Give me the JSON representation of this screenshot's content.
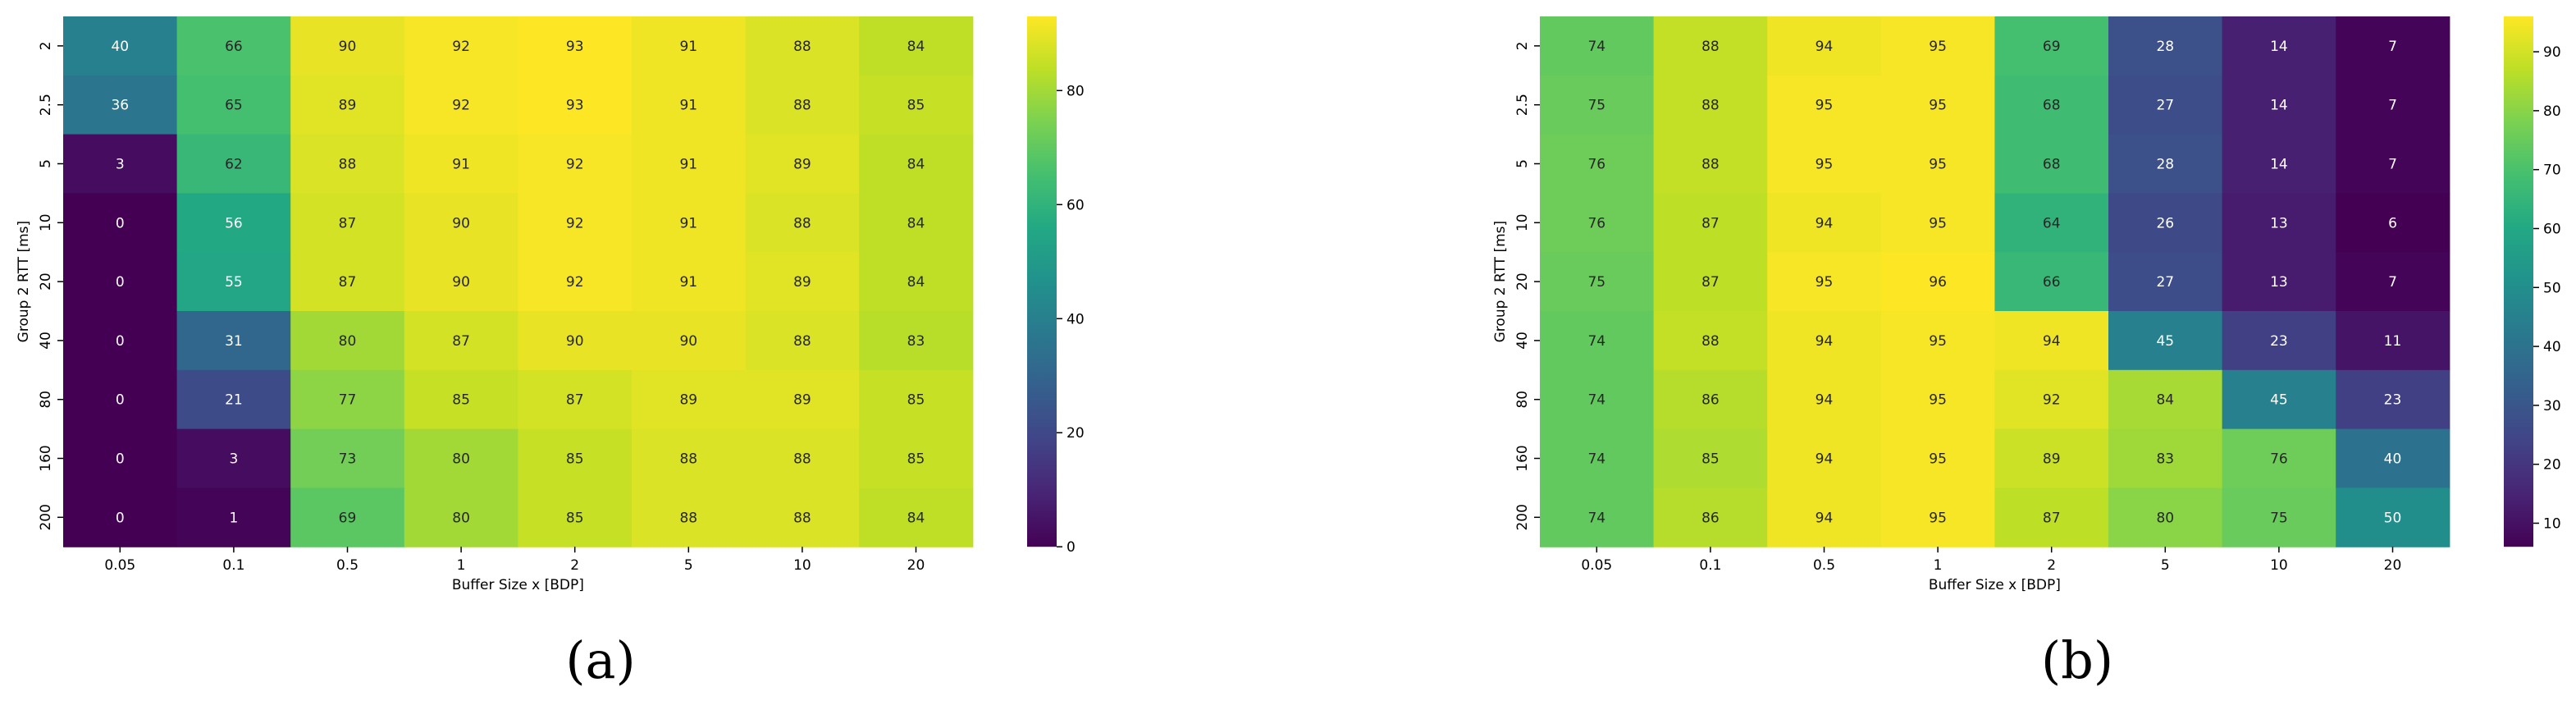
{
  "chart_data": [
    {
      "type": "heatmap",
      "xlabel": "Buffer Size x [BDP]",
      "ylabel": "Group 2 RTT [ms]",
      "x": [
        "0.05",
        "0.1",
        "0.5",
        "1",
        "2",
        "5",
        "10",
        "20"
      ],
      "y": [
        "2",
        "2.5",
        "5",
        "10",
        "20",
        "40",
        "80",
        "160",
        "200"
      ],
      "values": [
        [
          40,
          66,
          90,
          92,
          93,
          91,
          88,
          84
        ],
        [
          36,
          65,
          89,
          92,
          93,
          91,
          88,
          85
        ],
        [
          3,
          62,
          88,
          91,
          92,
          91,
          89,
          84
        ],
        [
          0,
          56,
          87,
          90,
          92,
          91,
          88,
          84
        ],
        [
          0,
          55,
          87,
          90,
          92,
          91,
          89,
          84
        ],
        [
          0,
          31,
          80,
          87,
          90,
          90,
          88,
          83
        ],
        [
          0,
          21,
          77,
          85,
          87,
          89,
          89,
          85
        ],
        [
          0,
          3,
          73,
          80,
          85,
          88,
          88,
          85
        ],
        [
          0,
          1,
          69,
          80,
          85,
          88,
          88,
          84
        ]
      ],
      "colormap": "viridis",
      "vmin": 0,
      "vmax": 93,
      "colorbar_ticks": [
        0,
        20,
        40,
        60,
        80
      ],
      "caption": "(a)"
    },
    {
      "type": "heatmap",
      "xlabel": "Buffer Size x [BDP]",
      "ylabel": "Group 2 RTT [ms]",
      "x": [
        "0.05",
        "0.1",
        "0.5",
        "1",
        "2",
        "5",
        "10",
        "20"
      ],
      "y": [
        "2",
        "2.5",
        "5",
        "10",
        "20",
        "40",
        "80",
        "160",
        "200"
      ],
      "values": [
        [
          74,
          88,
          94,
          95,
          69,
          28,
          14,
          7
        ],
        [
          75,
          88,
          95,
          95,
          68,
          27,
          14,
          7
        ],
        [
          76,
          88,
          95,
          95,
          68,
          28,
          14,
          7
        ],
        [
          76,
          87,
          94,
          95,
          64,
          26,
          13,
          6
        ],
        [
          75,
          87,
          95,
          96,
          66,
          27,
          13,
          7
        ],
        [
          74,
          88,
          94,
          95,
          94,
          45,
          23,
          11
        ],
        [
          74,
          86,
          94,
          95,
          92,
          84,
          45,
          23
        ],
        [
          74,
          85,
          94,
          95,
          89,
          83,
          76,
          40
        ],
        [
          74,
          86,
          94,
          95,
          87,
          80,
          75,
          50
        ]
      ],
      "colormap": "viridis",
      "vmin": 6,
      "vmax": 96,
      "colorbar_ticks": [
        10,
        20,
        30,
        40,
        50,
        60,
        70,
        80,
        90
      ],
      "caption": "(b)"
    }
  ]
}
